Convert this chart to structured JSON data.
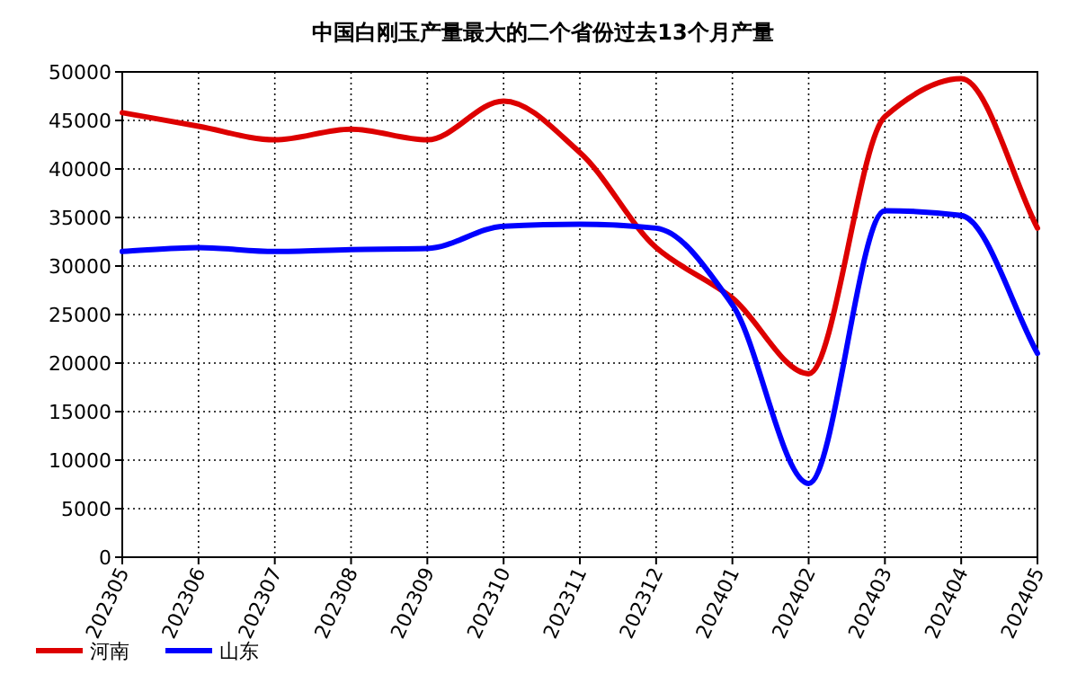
{
  "chart_data": {
    "type": "line",
    "title": "中国白刚玉产量最大的二个省份过去13个月产量",
    "categories": [
      "202305",
      "202306",
      "202307",
      "202308",
      "202309",
      "202310",
      "202311",
      "202312",
      "202401",
      "202402",
      "202403",
      "202404",
      "202405"
    ],
    "series": [
      {
        "name": "河南",
        "color": "#dd0000",
        "values": [
          45800,
          44400,
          43000,
          44100,
          43000,
          47000,
          41700,
          31900,
          26700,
          18900,
          45400,
          49300,
          33900
        ]
      },
      {
        "name": "山东",
        "color": "#0000ff",
        "values": [
          31500,
          31900,
          31500,
          31700,
          31800,
          34100,
          34300,
          33900,
          26000,
          7600,
          35700,
          35200,
          21000
        ]
      }
    ],
    "ylim": [
      0,
      50000
    ],
    "yticks": [
      0,
      5000,
      10000,
      15000,
      20000,
      25000,
      30000,
      35000,
      40000,
      45000,
      50000
    ],
    "grid": true,
    "legend": "bottom left",
    "line_style": "solid"
  }
}
